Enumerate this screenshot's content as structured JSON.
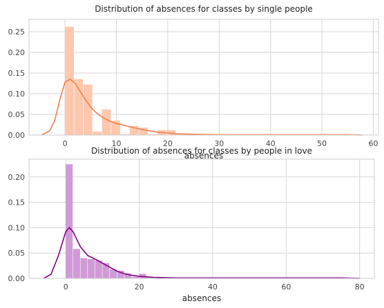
{
  "chart_data": [
    {
      "type": "bar",
      "title": "Distribution of absences for classes by single people",
      "xlabel": "absences",
      "ylabel": "",
      "xlim": [
        -7,
        61
      ],
      "ylim": [
        0,
        0.28
      ],
      "xticks": [
        0,
        10,
        20,
        30,
        40,
        50,
        60
      ],
      "yticks": [
        0.0,
        0.05,
        0.1,
        0.15,
        0.2,
        0.25
      ],
      "ytick_labels": [
        "0.00",
        "0.05",
        "0.10",
        "0.15",
        "0.20",
        "0.25"
      ],
      "grid": true,
      "bar_color": "#FDC8AE",
      "kde_color": "#F47F4F",
      "bin_width": 1.8,
      "bins": [
        {
          "x0": 0.0,
          "value": 0.262
        },
        {
          "x0": 1.8,
          "value": 0.135
        },
        {
          "x0": 3.6,
          "value": 0.122
        },
        {
          "x0": 5.4,
          "value": 0.008
        },
        {
          "x0": 7.2,
          "value": 0.062
        },
        {
          "x0": 9.0,
          "value": 0.035
        },
        {
          "x0": 10.8,
          "value": 0.002
        },
        {
          "x0": 12.6,
          "value": 0.022
        },
        {
          "x0": 14.4,
          "value": 0.018
        },
        {
          "x0": 16.2,
          "value": 0.002
        },
        {
          "x0": 18.0,
          "value": 0.012
        },
        {
          "x0": 19.8,
          "value": 0.012
        },
        {
          "x0": 21.6,
          "value": 0.003
        },
        {
          "x0": 23.4,
          "value": 0.003
        },
        {
          "x0": 25.2,
          "value": 0.001
        }
      ],
      "kde": [
        [
          -4.5,
          0.0
        ],
        [
          -3,
          0.01
        ],
        [
          -2,
          0.035
        ],
        [
          -1,
          0.085
        ],
        [
          0,
          0.128
        ],
        [
          1,
          0.135
        ],
        [
          2,
          0.125
        ],
        [
          3,
          0.105
        ],
        [
          4,
          0.085
        ],
        [
          5,
          0.068
        ],
        [
          6,
          0.055
        ],
        [
          7,
          0.045
        ],
        [
          8,
          0.038
        ],
        [
          9,
          0.032
        ],
        [
          10,
          0.028
        ],
        [
          12,
          0.022
        ],
        [
          14,
          0.016
        ],
        [
          16,
          0.011
        ],
        [
          18,
          0.007
        ],
        [
          20,
          0.005
        ],
        [
          22,
          0.003
        ],
        [
          25,
          0.002
        ],
        [
          30,
          0.001
        ],
        [
          40,
          0.001
        ],
        [
          50,
          0.001
        ],
        [
          55,
          0.001
        ],
        [
          58,
          0.0
        ]
      ]
    },
    {
      "type": "bar",
      "title": "Distribution of absences for classes by people in love",
      "xlabel": "absences",
      "ylabel": "",
      "xlim": [
        -10,
        84
      ],
      "ylim": [
        0,
        0.235
      ],
      "xticks": [
        0,
        20,
        40,
        60,
        80
      ],
      "yticks": [
        0.0,
        0.05,
        0.1,
        0.15,
        0.2
      ],
      "ytick_labels": [
        "0.00",
        "0.05",
        "0.10",
        "0.15",
        "0.20"
      ],
      "grid": true,
      "bar_color": "#D09AD6",
      "kde_color": "#800080",
      "bin_width": 2.0,
      "bins": [
        {
          "x0": 0,
          "value": 0.225
        },
        {
          "x0": 2,
          "value": 0.058
        },
        {
          "x0": 4,
          "value": 0.04
        },
        {
          "x0": 6,
          "value": 0.038
        },
        {
          "x0": 8,
          "value": 0.035
        },
        {
          "x0": 10,
          "value": 0.03
        },
        {
          "x0": 12,
          "value": 0.018
        },
        {
          "x0": 14,
          "value": 0.015
        },
        {
          "x0": 16,
          "value": 0.01
        },
        {
          "x0": 18,
          "value": 0.003
        },
        {
          "x0": 20,
          "value": 0.009
        },
        {
          "x0": 22,
          "value": 0.002
        },
        {
          "x0": 24,
          "value": 0.001
        }
      ],
      "kde": [
        [
          -6,
          0.0
        ],
        [
          -4,
          0.008
        ],
        [
          -2,
          0.045
        ],
        [
          0,
          0.092
        ],
        [
          1,
          0.1
        ],
        [
          2,
          0.092
        ],
        [
          4,
          0.062
        ],
        [
          6,
          0.045
        ],
        [
          8,
          0.038
        ],
        [
          10,
          0.03
        ],
        [
          12,
          0.022
        ],
        [
          14,
          0.014
        ],
        [
          16,
          0.009
        ],
        [
          18,
          0.006
        ],
        [
          20,
          0.004
        ],
        [
          24,
          0.002
        ],
        [
          30,
          0.001
        ],
        [
          40,
          0.001
        ],
        [
          60,
          0.001
        ],
        [
          75,
          0.001
        ],
        [
          80,
          0.0
        ]
      ]
    }
  ]
}
